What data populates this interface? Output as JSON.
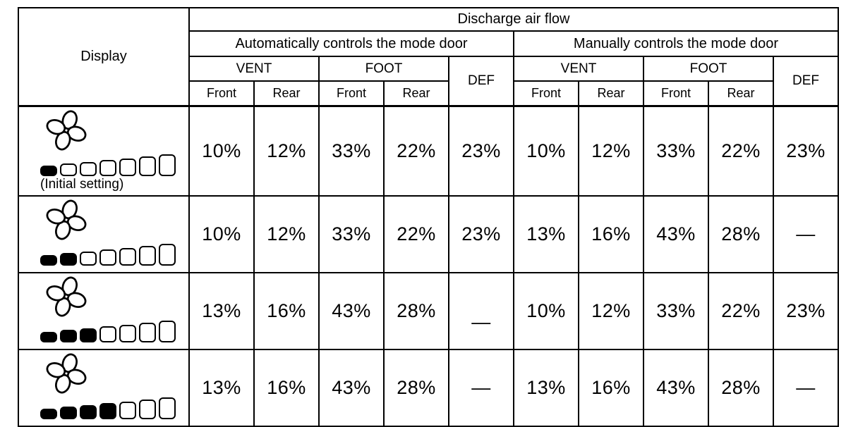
{
  "header": {
    "display": "Display",
    "title": "Discharge air flow",
    "groups": [
      "Automatically controls the mode door",
      "Manually controls the mode door"
    ],
    "vent": "VENT",
    "foot": "FOOT",
    "def": "DEF",
    "front": "Front",
    "rear": "Rear"
  },
  "rows": [
    {
      "display": {
        "bars_filled": 1,
        "bars_total": 7,
        "caption": "(Initial setting)"
      },
      "values": [
        "10%",
        "12%",
        "33%",
        "22%",
        "23%",
        "10%",
        "12%",
        "33%",
        "22%",
        "23%"
      ]
    },
    {
      "display": {
        "bars_filled": 2,
        "bars_total": 7,
        "caption": ""
      },
      "values": [
        "10%",
        "12%",
        "33%",
        "22%",
        "23%",
        "13%",
        "16%",
        "43%",
        "28%",
        "—"
      ]
    },
    {
      "display": {
        "bars_filled": 3,
        "bars_total": 7,
        "caption": ""
      },
      "values": [
        "13%",
        "16%",
        "43%",
        "28%",
        "—",
        "10%",
        "12%",
        "33%",
        "22%",
        "23%"
      ]
    },
    {
      "display": {
        "bars_filled": 4,
        "bars_total": 7,
        "caption": ""
      },
      "values": [
        "13%",
        "16%",
        "43%",
        "28%",
        "—",
        "13%",
        "16%",
        "43%",
        "28%",
        "—"
      ]
    }
  ]
}
